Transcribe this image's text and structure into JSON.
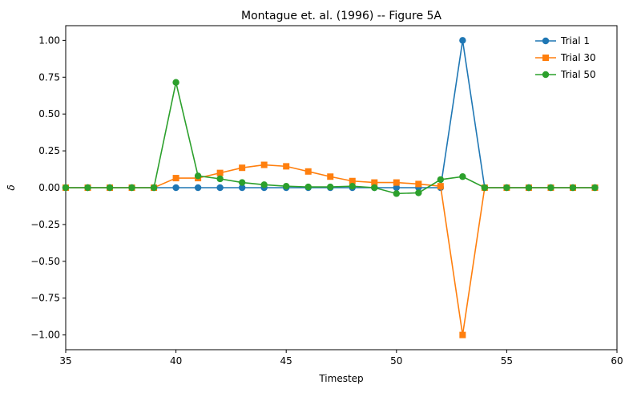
{
  "chart_data": {
    "type": "line",
    "title": "Montague et. al. (1996) -- Figure 5A",
    "xlabel": "Timestep",
    "ylabel": "δ",
    "xlim": [
      35,
      60
    ],
    "ylim": [
      -1.1,
      1.1
    ],
    "xticks": [
      35,
      40,
      45,
      50,
      55,
      60
    ],
    "yticks": [
      1.0,
      0.75,
      0.5,
      0.25,
      0.0,
      -0.25,
      -0.5,
      -0.75,
      -1.0
    ],
    "ytick_labels": [
      "1.00",
      "0.75",
      "0.50",
      "0.25",
      "0.00",
      "−0.25",
      "−0.50",
      "−0.75",
      "−1.00"
    ],
    "grid": false,
    "legend_position": "top-right",
    "x": [
      35,
      36,
      37,
      38,
      39,
      40,
      41,
      42,
      43,
      44,
      45,
      46,
      47,
      48,
      49,
      50,
      51,
      52,
      53,
      54,
      55,
      56,
      57,
      58,
      59
    ],
    "series": [
      {
        "name": "Trial 1",
        "color": "#1f77b4",
        "marker": "circle",
        "values": [
          0,
          0,
          0,
          0,
          0,
          0,
          0,
          0,
          0,
          0,
          0,
          0,
          0,
          0,
          0,
          0,
          0,
          0,
          1.0,
          0,
          0,
          0,
          0,
          0,
          0
        ]
      },
      {
        "name": "Trial 30",
        "color": "#ff7f0e",
        "marker": "square",
        "values": [
          0,
          0,
          0,
          0,
          0,
          0.065,
          0.065,
          0.1,
          0.135,
          0.155,
          0.145,
          0.11,
          0.075,
          0.045,
          0.035,
          0.035,
          0.025,
          0.01,
          -1.0,
          0,
          0,
          0,
          0,
          0,
          0
        ]
      },
      {
        "name": "Trial 50",
        "color": "#2ca02c",
        "marker": "circle",
        "values": [
          0,
          0,
          0,
          0,
          0,
          0.715,
          0.08,
          0.06,
          0.035,
          0.02,
          0.01,
          0.005,
          0.005,
          0.01,
          0.0,
          -0.04,
          -0.035,
          0.055,
          0.075,
          0,
          0,
          0,
          0,
          0,
          0
        ]
      }
    ]
  }
}
